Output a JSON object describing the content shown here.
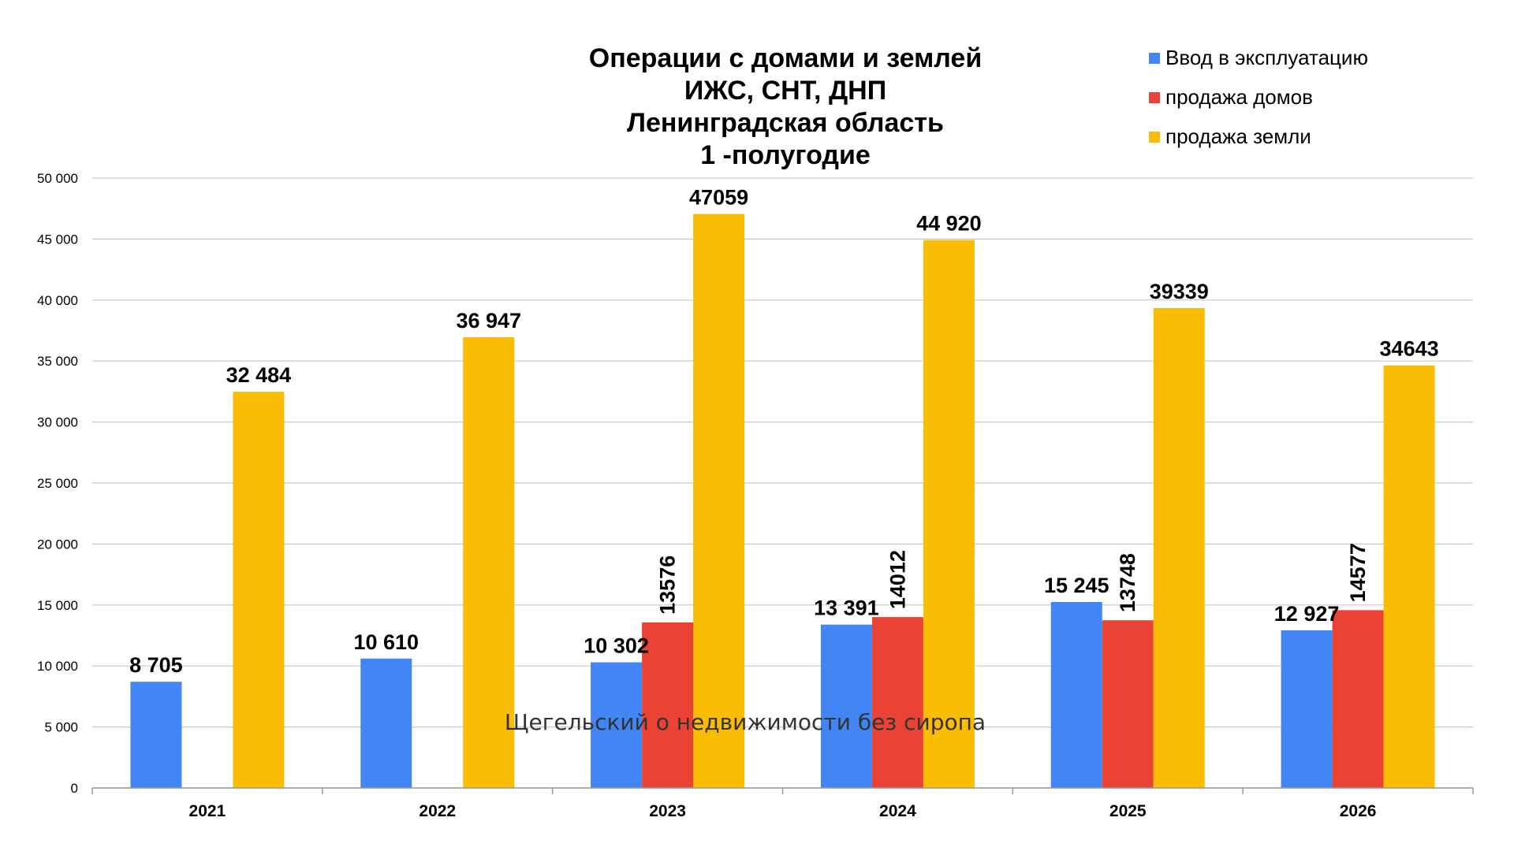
{
  "chart_data": {
    "type": "bar",
    "title_lines": [
      "Операции с домами и землей",
      "ИЖС, СНТ, ДНП",
      "Ленинградская область",
      "1 -полугодие"
    ],
    "categories": [
      "2021",
      "2022",
      "2023",
      "2024",
      "2025",
      "2026"
    ],
    "series": [
      {
        "name": "Ввод в эксплуатацию",
        "color": "#4285F4",
        "values": [
          8705,
          10610,
          10302,
          13391,
          15245,
          12927
        ],
        "labels": [
          "8 705",
          "10 610",
          "10 302",
          "13 391",
          "15 245",
          "12 927"
        ],
        "label_rotated": false
      },
      {
        "name": "продажа домов",
        "color": "#EA4335",
        "values": [
          null,
          null,
          13576,
          14012,
          13748,
          14577
        ],
        "labels": [
          "",
          "",
          "13576",
          "14012",
          "13748",
          "14577"
        ],
        "label_rotated": true
      },
      {
        "name": "продажа земли",
        "color": "#FBBC04",
        "values": [
          32484,
          36947,
          47059,
          44920,
          39339,
          34643
        ],
        "labels": [
          "32 484",
          "36 947",
          "47059",
          "44 920",
          "39339",
          "34643"
        ],
        "label_rotated": false
      }
    ],
    "ylim": [
      0,
      50000
    ],
    "yticks": [
      {
        "value": 0,
        "label": "0"
      },
      {
        "value": 5000,
        "label": "5 000"
      },
      {
        "value": 10000,
        "label": "10 000"
      },
      {
        "value": 15000,
        "label": "15 000"
      },
      {
        "value": 20000,
        "label": "20 000"
      },
      {
        "value": 25000,
        "label": "25 000"
      },
      {
        "value": 30000,
        "label": "30 000"
      },
      {
        "value": 35000,
        "label": "35 000"
      },
      {
        "value": 40000,
        "label": "40 000"
      },
      {
        "value": 45000,
        "label": "45 000"
      },
      {
        "value": 50000,
        "label": "50 000"
      }
    ],
    "grid": true,
    "legend_position": "top-right",
    "xlabel": "",
    "ylabel": ""
  },
  "watermark": "Щегельский о недвижимости без сиропа"
}
